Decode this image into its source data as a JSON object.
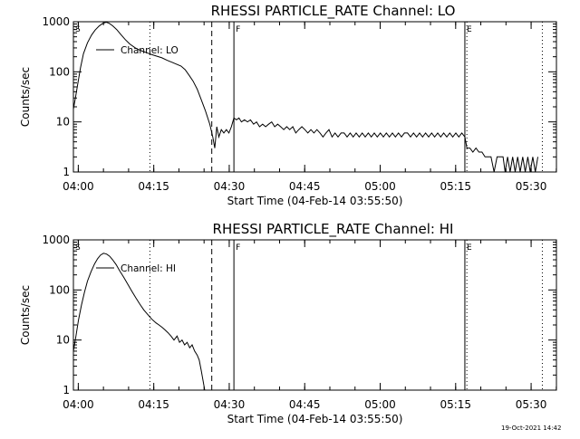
{
  "timestamp": "19-Oct-2021 14:42",
  "chart_data": [
    {
      "type": "line",
      "title": "RHESSI PARTICLE_RATE Channel: LO",
      "xlabel": "Start Time (04-Feb-14 03:55:50)",
      "ylabel": "Counts/sec",
      "xlim_minutes": [
        3.2,
        99.2
      ],
      "y_log": true,
      "ylim": [
        1,
        1000
      ],
      "xtick_labels": [
        "04:00",
        "04:15",
        "04:30",
        "04:45",
        "05:00",
        "05:15",
        "05:30"
      ],
      "xtick_minutes": [
        4.17,
        19.17,
        34.17,
        49.17,
        64.17,
        79.17,
        94.17
      ],
      "ytick_labels": [
        "1",
        "10",
        "100",
        "1000"
      ],
      "ytick_values": [
        1,
        10,
        100,
        1000
      ],
      "legend": "Channel: LO",
      "markers": [
        {
          "label": "S",
          "minute": 3.2,
          "style": "none"
        },
        {
          "label": "",
          "minute": 18.4,
          "style": "dotted"
        },
        {
          "label": "",
          "minute": 30.7,
          "style": "dashed"
        },
        {
          "label": "F",
          "minute": 35.1,
          "style": "solid"
        },
        {
          "label": "E",
          "minute": 81.0,
          "style": "solid"
        },
        {
          "label": "",
          "minute": 81.4,
          "style": "dotted"
        },
        {
          "label": "",
          "minute": 96.4,
          "style": "dotted"
        }
      ],
      "series": [
        {
          "values": [
            [
              3.2,
              18
            ],
            [
              3.6,
              30
            ],
            [
              4.1,
              60
            ],
            [
              4.6,
              120
            ],
            [
              5.2,
              230
            ],
            [
              6.0,
              380
            ],
            [
              6.8,
              540
            ],
            [
              7.5,
              680
            ],
            [
              8.3,
              820
            ],
            [
              9.0,
              920
            ],
            [
              9.7,
              980
            ],
            [
              10.3,
              930
            ],
            [
              11.0,
              830
            ],
            [
              11.8,
              700
            ],
            [
              12.6,
              560
            ],
            [
              13.5,
              440
            ],
            [
              14.4,
              360
            ],
            [
              15.5,
              300
            ],
            [
              16.6,
              265
            ],
            [
              17.8,
              240
            ],
            [
              18.8,
              220
            ],
            [
              19.8,
              205
            ],
            [
              20.8,
              190
            ],
            [
              21.8,
              170
            ],
            [
              22.8,
              155
            ],
            [
              23.8,
              140
            ],
            [
              24.6,
              130
            ],
            [
              25.4,
              110
            ],
            [
              26.2,
              85
            ],
            [
              27.0,
              65
            ],
            [
              27.8,
              45
            ],
            [
              28.6,
              28
            ],
            [
              29.4,
              17
            ],
            [
              30.3,
              9
            ],
            [
              30.9,
              5
            ],
            [
              31.3,
              3
            ],
            [
              31.7,
              8
            ],
            [
              32.1,
              5
            ],
            [
              32.6,
              7
            ],
            [
              33.1,
              6
            ],
            [
              33.6,
              7
            ],
            [
              34.1,
              6
            ],
            [
              34.6,
              8
            ],
            [
              35.1,
              12
            ],
            [
              35.6,
              11
            ],
            [
              36.1,
              12
            ],
            [
              36.6,
              10
            ],
            [
              37.2,
              11
            ],
            [
              37.8,
              10
            ],
            [
              38.4,
              11
            ],
            [
              39.0,
              9
            ],
            [
              39.6,
              10
            ],
            [
              40.2,
              8
            ],
            [
              40.8,
              9
            ],
            [
              41.4,
              8
            ],
            [
              42.0,
              9
            ],
            [
              42.6,
              10
            ],
            [
              43.2,
              8
            ],
            [
              43.8,
              9
            ],
            [
              44.4,
              8
            ],
            [
              45.0,
              7
            ],
            [
              45.6,
              8
            ],
            [
              46.2,
              7
            ],
            [
              46.8,
              8
            ],
            [
              47.4,
              6
            ],
            [
              48.0,
              7
            ],
            [
              48.6,
              8
            ],
            [
              49.2,
              7
            ],
            [
              49.8,
              6
            ],
            [
              50.4,
              7
            ],
            [
              51.0,
              6
            ],
            [
              51.6,
              7
            ],
            [
              52.2,
              6
            ],
            [
              52.8,
              5
            ],
            [
              53.4,
              6
            ],
            [
              54.0,
              7
            ],
            [
              54.6,
              5
            ],
            [
              55.2,
              6
            ],
            [
              55.8,
              5
            ],
            [
              56.4,
              6
            ],
            [
              57.0,
              6
            ],
            [
              57.6,
              5
            ],
            [
              58.2,
              6
            ],
            [
              58.8,
              5
            ],
            [
              59.4,
              6
            ],
            [
              60.0,
              5
            ],
            [
              60.6,
              6
            ],
            [
              61.2,
              5
            ],
            [
              61.8,
              6
            ],
            [
              62.4,
              5
            ],
            [
              63.0,
              6
            ],
            [
              63.6,
              5
            ],
            [
              64.2,
              6
            ],
            [
              64.8,
              5
            ],
            [
              65.4,
              6
            ],
            [
              66.0,
              5
            ],
            [
              66.6,
              6
            ],
            [
              67.2,
              5
            ],
            [
              67.8,
              6
            ],
            [
              68.4,
              5
            ],
            [
              69.0,
              6
            ],
            [
              69.6,
              6
            ],
            [
              70.2,
              5
            ],
            [
              70.8,
              6
            ],
            [
              71.4,
              5
            ],
            [
              72.0,
              6
            ],
            [
              72.6,
              5
            ],
            [
              73.2,
              6
            ],
            [
              73.8,
              5
            ],
            [
              74.4,
              6
            ],
            [
              75.0,
              5
            ],
            [
              75.6,
              6
            ],
            [
              76.2,
              5
            ],
            [
              76.8,
              6
            ],
            [
              77.4,
              5
            ],
            [
              78.0,
              6
            ],
            [
              78.6,
              5
            ],
            [
              79.2,
              6
            ],
            [
              79.8,
              5
            ],
            [
              80.4,
              6
            ],
            [
              81.0,
              5
            ],
            [
              81.4,
              3
            ],
            [
              82.0,
              3
            ],
            [
              82.6,
              2.5
            ],
            [
              83.2,
              3
            ],
            [
              83.8,
              2.5
            ],
            [
              84.4,
              2.5
            ],
            [
              85.0,
              2
            ],
            [
              85.6,
              2
            ],
            [
              86.2,
              2
            ],
            [
              86.8,
              1
            ],
            [
              87.4,
              2
            ],
            [
              88.0,
              2
            ],
            [
              88.6,
              2
            ],
            [
              89.0,
              1
            ],
            [
              89.5,
              2
            ],
            [
              90.0,
              1
            ],
            [
              90.5,
              2
            ],
            [
              91.0,
              1
            ],
            [
              91.5,
              2
            ],
            [
              92.0,
              1
            ],
            [
              92.5,
              2
            ],
            [
              93.0,
              1
            ],
            [
              93.5,
              2
            ],
            [
              94.0,
              1
            ],
            [
              94.5,
              2
            ],
            [
              95.0,
              1
            ],
            [
              95.5,
              2
            ]
          ]
        }
      ]
    },
    {
      "type": "line",
      "title": "RHESSI PARTICLE_RATE Channel: HI",
      "xlabel": "Start Time (04-Feb-14 03:55:50)",
      "ylabel": "Counts/sec",
      "xlim_minutes": [
        3.2,
        99.2
      ],
      "y_log": true,
      "ylim": [
        1,
        1000
      ],
      "xtick_labels": [
        "04:00",
        "04:15",
        "04:30",
        "04:45",
        "05:00",
        "05:15",
        "05:30"
      ],
      "xtick_minutes": [
        4.17,
        19.17,
        34.17,
        49.17,
        64.17,
        79.17,
        94.17
      ],
      "ytick_labels": [
        "1",
        "10",
        "100",
        "1000"
      ],
      "ytick_values": [
        1,
        10,
        100,
        1000
      ],
      "legend": "Channel: HI",
      "markers": [
        {
          "label": "S",
          "minute": 3.2,
          "style": "none"
        },
        {
          "label": "",
          "minute": 18.4,
          "style": "dotted"
        },
        {
          "label": "",
          "minute": 30.7,
          "style": "dashed"
        },
        {
          "label": "F",
          "minute": 35.1,
          "style": "solid"
        },
        {
          "label": "E",
          "minute": 81.0,
          "style": "solid"
        },
        {
          "label": "",
          "minute": 81.4,
          "style": "dotted"
        },
        {
          "label": "",
          "minute": 96.4,
          "style": "dotted"
        }
      ],
      "series": [
        {
          "values": [
            [
              3.2,
              6
            ],
            [
              3.7,
              12
            ],
            [
              4.2,
              25
            ],
            [
              4.8,
              50
            ],
            [
              5.4,
              90
            ],
            [
              6.0,
              150
            ],
            [
              6.7,
              230
            ],
            [
              7.4,
              330
            ],
            [
              8.0,
              420
            ],
            [
              8.6,
              500
            ],
            [
              9.2,
              540
            ],
            [
              9.8,
              520
            ],
            [
              10.4,
              470
            ],
            [
              11.0,
              400
            ],
            [
              11.7,
              320
            ],
            [
              12.4,
              240
            ],
            [
              13.2,
              180
            ],
            [
              14.0,
              130
            ],
            [
              14.8,
              95
            ],
            [
              15.6,
              70
            ],
            [
              16.4,
              52
            ],
            [
              17.2,
              40
            ],
            [
              18.0,
              32
            ],
            [
              18.8,
              26
            ],
            [
              19.6,
              22
            ],
            [
              20.2,
              20
            ],
            [
              20.8,
              18
            ],
            [
              21.4,
              16
            ],
            [
              22.0,
              14
            ],
            [
              22.6,
              12
            ],
            [
              23.2,
              10
            ],
            [
              23.8,
              12
            ],
            [
              24.3,
              9
            ],
            [
              24.8,
              10
            ],
            [
              25.3,
              8
            ],
            [
              25.8,
              9
            ],
            [
              26.3,
              7
            ],
            [
              26.8,
              8
            ],
            [
              27.3,
              6
            ],
            [
              27.8,
              5
            ],
            [
              28.2,
              4
            ],
            [
              28.6,
              2.5
            ],
            [
              29.0,
              1.5
            ],
            [
              29.3,
              1
            ]
          ]
        }
      ]
    }
  ]
}
